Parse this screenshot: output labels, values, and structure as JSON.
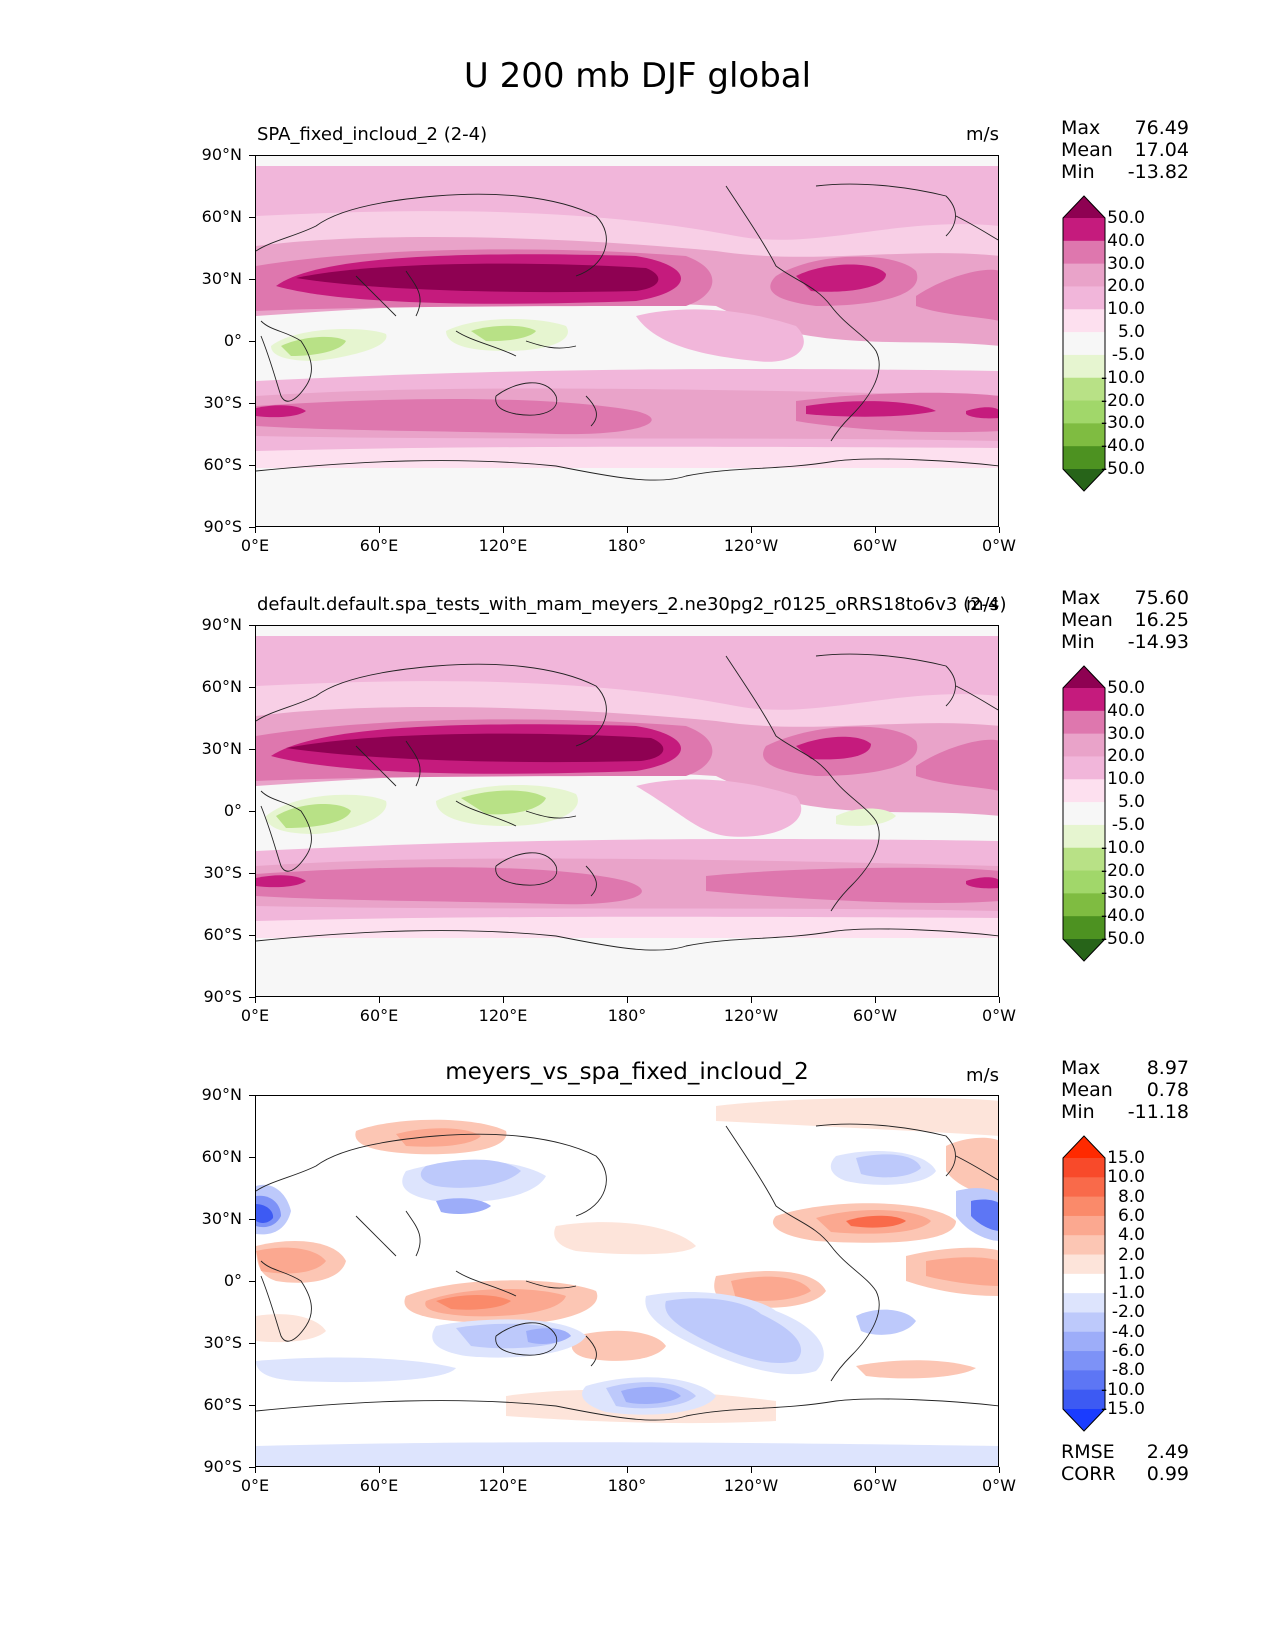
{
  "figure": {
    "title": "U 200 mb DJF global"
  },
  "x_ticks": [
    "0°E",
    "60°E",
    "120°E",
    "180°",
    "120°W",
    "60°W",
    "0°W"
  ],
  "y_ticks": [
    "90°N",
    "60°N",
    "30°N",
    "0°",
    "30°S",
    "60°S",
    "90°S"
  ],
  "panels": [
    {
      "title": "SPA_fixed_incloud_2 (2-4)",
      "units": "m/s",
      "stats": {
        "max_label": "Max",
        "max": "76.49",
        "mean_label": "Mean",
        "mean": "17.04",
        "min_label": "Min",
        "min": "-13.82"
      },
      "colorbar": {
        "labels": [
          "50.0",
          "40.0",
          "30.0",
          "20.0",
          "10.0",
          "5.0",
          "-5.0",
          "-10.0",
          "-20.0",
          "-30.0",
          "-40.0",
          "-50.0"
        ],
        "colors": [
          "#8e0152",
          "#c51b7d",
          "#de77ae",
          "#e9a3c9",
          "#f1b6da",
          "#fde0ef",
          "#f7f7f7",
          "#e6f5d0",
          "#b8e186",
          "#a1d76a",
          "#7fbc41",
          "#4d9221",
          "#276419"
        ]
      }
    },
    {
      "title": "default.default.spa_tests_with_mam_meyers_2.ne30pg2_r0125_oRRS18to6v3 (2-4)",
      "units": "m/s",
      "stats": {
        "max_label": "Max",
        "max": "75.60",
        "mean_label": "Mean",
        "mean": "16.25",
        "min_label": "Min",
        "min": "-14.93"
      },
      "colorbar": {
        "labels": [
          "50.0",
          "40.0",
          "30.0",
          "20.0",
          "10.0",
          "5.0",
          "-5.0",
          "-10.0",
          "-20.0",
          "-30.0",
          "-40.0",
          "-50.0"
        ],
        "colors": [
          "#8e0152",
          "#c51b7d",
          "#de77ae",
          "#e9a3c9",
          "#f1b6da",
          "#fde0ef",
          "#f7f7f7",
          "#e6f5d0",
          "#b8e186",
          "#a1d76a",
          "#7fbc41",
          "#4d9221",
          "#276419"
        ]
      }
    },
    {
      "title": "meyers_vs_spa_fixed_incloud_2",
      "units": "m/s",
      "stats": {
        "max_label": "Max",
        "max": "8.97",
        "mean_label": "Mean",
        "mean": "0.78",
        "min_label": "Min",
        "min": "-11.18"
      },
      "extra_stats": {
        "rmse_label": "RMSE",
        "rmse": "2.49",
        "corr_label": "CORR",
        "corr": "0.99"
      },
      "colorbar": {
        "labels": [
          "15.0",
          "10.0",
          "8.0",
          "6.0",
          "4.0",
          "2.0",
          "1.0",
          "-1.0",
          "-2.0",
          "-4.0",
          "-6.0",
          "-8.0",
          "-10.0",
          "-15.0"
        ],
        "colors": [
          "#ff2a00",
          "#f84a2a",
          "#f96a4a",
          "#fa8a6a",
          "#fba890",
          "#fcc6b4",
          "#fde4da",
          "#ffffff",
          "#dde4fd",
          "#bdc9fb",
          "#9dadf9",
          "#7d92f7",
          "#5d76f5",
          "#3d5af3",
          "#1a3cff"
        ]
      }
    }
  ]
}
